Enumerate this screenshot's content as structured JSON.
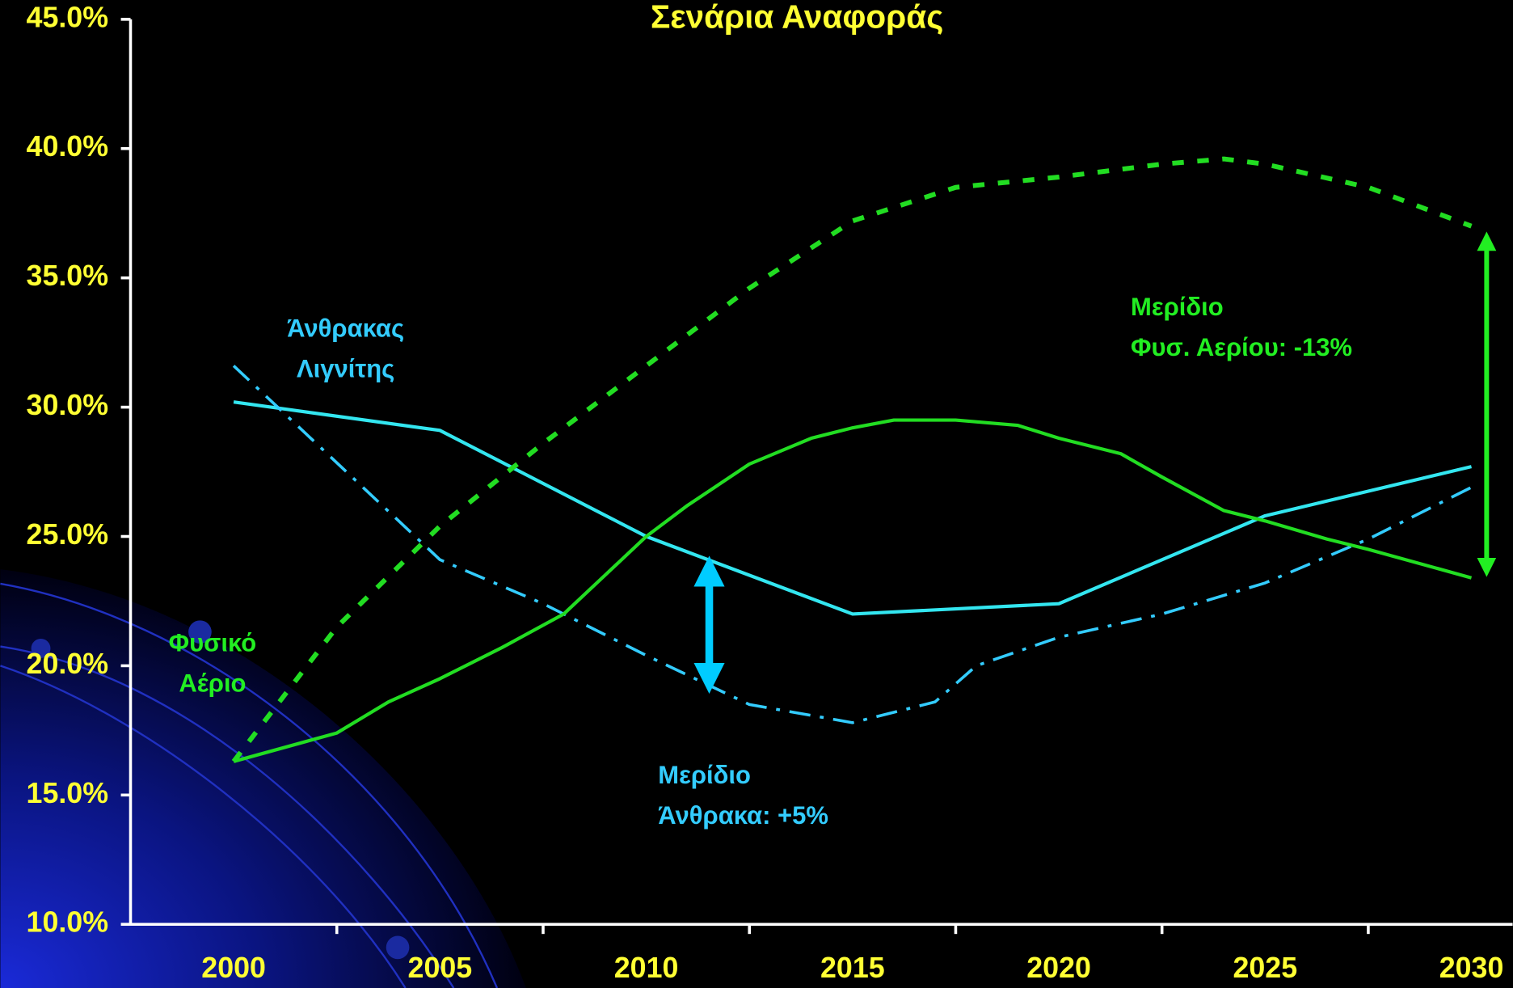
{
  "chart_data": {
    "type": "line",
    "title": "Σενάρια Αναφοράς",
    "xlim": [
      1997.5,
      2031
    ],
    "xticks": [
      2000,
      2005,
      2010,
      2015,
      2020,
      2025,
      2030
    ],
    "ylim": [
      10,
      45
    ],
    "yticks": [
      {
        "value": 10,
        "label": "10.0%"
      },
      {
        "value": 15,
        "label": "15.0%"
      },
      {
        "value": 20,
        "label": "20.0%"
      },
      {
        "value": 25,
        "label": "25.0%"
      },
      {
        "value": 30,
        "label": "30.0%"
      },
      {
        "value": 35,
        "label": "35.0%"
      },
      {
        "value": 40,
        "label": "40.0%"
      },
      {
        "value": 45,
        "label": "45.0%"
      }
    ],
    "series": [
      {
        "color": "#33e6f0",
        "style": "solid",
        "x": [
          2000,
          2005,
          2010,
          2015,
          2020,
          2025,
          2030
        ],
        "values": [
          30.2,
          29.1,
          25.0,
          22.0,
          22.4,
          25.8,
          27.7
        ]
      },
      {
        "color": "#33ccff",
        "style": "dashdot",
        "x": [
          2000,
          2005,
          2007.5,
          2010,
          2012.5,
          2015,
          2017,
          2018,
          2020,
          2022.5,
          2025,
          2027.5,
          2030
        ],
        "values": [
          31.6,
          24.1,
          22.4,
          20.4,
          18.5,
          17.8,
          18.6,
          20.0,
          21.1,
          22.0,
          23.2,
          24.9,
          26.9
        ]
      },
      {
        "color": "#22dd22",
        "style": "solid",
        "x": [
          2000,
          2002.5,
          2003.75,
          2005,
          2006.5,
          2008,
          2009,
          2010,
          2011,
          2012.5,
          2014,
          2015,
          2016,
          2017.5,
          2019,
          2020,
          2021.5,
          2022.5,
          2024,
          2025,
          2026.5,
          2027.5,
          2030
        ],
        "values": [
          16.3,
          17.4,
          18.6,
          19.5,
          20.7,
          22.0,
          23.5,
          25.0,
          26.2,
          27.8,
          28.8,
          29.2,
          29.5,
          29.5,
          29.3,
          28.8,
          28.2,
          27.3,
          26.0,
          25.6,
          24.9,
          24.5,
          23.4
        ]
      },
      {
        "color": "#22dd22",
        "style": "dashed",
        "x": [
          2000,
          2002.5,
          2005,
          2007.5,
          2010,
          2012.5,
          2015,
          2017.5,
          2020,
          2022.5,
          2024,
          2025,
          2027.5,
          2030
        ],
        "values": [
          16.3,
          21.5,
          25.4,
          28.6,
          31.6,
          34.6,
          37.2,
          38.5,
          38.9,
          39.4,
          39.6,
          39.4,
          38.5,
          37.0
        ]
      }
    ],
    "annotations": [
      {
        "lines": [
          "Άνθρακας",
          "Λιγνίτης"
        ]
      },
      {
        "lines": [
          "Φυσικό",
          "Αέριο"
        ]
      },
      {
        "lines": [
          "Μερίδιο",
          "Άνθρακα: +5%"
        ]
      },
      {
        "lines": [
          "Μερίδιο",
          "Φυσ. Αερίου: -13%"
        ]
      }
    ]
  }
}
